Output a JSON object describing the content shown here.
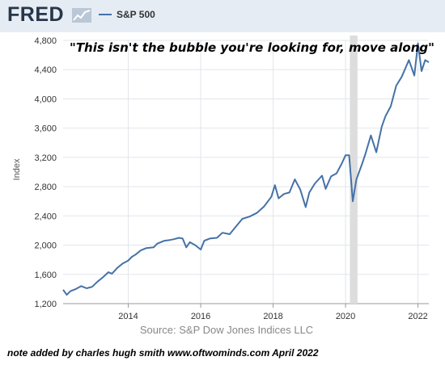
{
  "header": {
    "brand": "FRED",
    "brand_icon": "trend-line-icon",
    "legend_label": "S&P 500"
  },
  "annotation": "\"This isn't the bubble you're looking for, move along\"",
  "source": "Source: S&P Dow Jones Indices LLC",
  "note": "note added by charles hugh smith   www.oftwominds.com  April 2022",
  "colors": {
    "series": "#4572a7",
    "header_bg": "#e6ecf3",
    "recession": "#dddddd",
    "grid": "#e1e5ea"
  },
  "chart_data": {
    "type": "line",
    "title": "",
    "xlabel": "",
    "ylabel": "Index",
    "xlim": [
      2012.2,
      2022.3
    ],
    "ylim": [
      1200,
      4800
    ],
    "x_ticks": [
      "2014",
      "2016",
      "2018",
      "2020",
      "2022"
    ],
    "y_ticks": [
      "1,200",
      "1,600",
      "2,000",
      "2,400",
      "2,800",
      "3,200",
      "3,600",
      "4,000",
      "4,400",
      "4,800"
    ],
    "grid": true,
    "legend": "top-left",
    "recession_band": [
      2020.12,
      2020.33
    ],
    "series": [
      {
        "name": "S&P 500",
        "x": [
          2012.2,
          2012.3,
          2012.4,
          2012.55,
          2012.7,
          2012.85,
          2013.0,
          2013.15,
          2013.3,
          2013.45,
          2013.55,
          2013.7,
          2013.85,
          2014.0,
          2014.1,
          2014.2,
          2014.35,
          2014.5,
          2014.7,
          2014.8,
          2015.0,
          2015.15,
          2015.25,
          2015.4,
          2015.5,
          2015.6,
          2015.7,
          2015.85,
          2016.0,
          2016.1,
          2016.25,
          2016.45,
          2016.6,
          2016.8,
          2016.95,
          2017.15,
          2017.35,
          2017.55,
          2017.75,
          2017.95,
          2018.05,
          2018.15,
          2018.3,
          2018.45,
          2018.6,
          2018.75,
          2018.9,
          2019.0,
          2019.15,
          2019.35,
          2019.45,
          2019.6,
          2019.75,
          2019.9,
          2020.0,
          2020.1,
          2020.2,
          2020.3,
          2020.45,
          2020.55,
          2020.7,
          2020.85,
          2021.0,
          2021.1,
          2021.25,
          2021.4,
          2021.55,
          2021.75,
          2021.9,
          2022.0,
          2022.1,
          2022.2,
          2022.3
        ],
        "values": [
          1390,
          1320,
          1370,
          1400,
          1440,
          1410,
          1430,
          1500,
          1560,
          1630,
          1610,
          1690,
          1750,
          1790,
          1840,
          1870,
          1930,
          1960,
          1970,
          2020,
          2060,
          2070,
          2080,
          2100,
          2090,
          1970,
          2040,
          2000,
          1940,
          2060,
          2090,
          2100,
          2170,
          2150,
          2240,
          2360,
          2390,
          2440,
          2530,
          2660,
          2820,
          2640,
          2700,
          2720,
          2900,
          2760,
          2520,
          2720,
          2840,
          2950,
          2770,
          2940,
          2980,
          3120,
          3230,
          3230,
          2600,
          2900,
          3100,
          3250,
          3500,
          3270,
          3620,
          3760,
          3900,
          4180,
          4300,
          4530,
          4320,
          4760,
          4380,
          4530,
          4500
        ]
      }
    ]
  }
}
